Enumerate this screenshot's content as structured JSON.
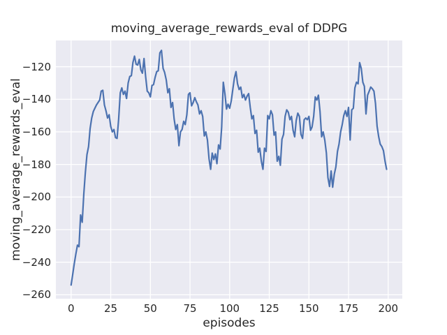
{
  "chart_data": {
    "type": "line",
    "title": "moving_average_rewards_eval of DDPG",
    "xlabel": "episodes",
    "ylabel": "moving_average_rewards_eval",
    "xlim": [
      -9.6,
      208.9
    ],
    "ylim": [
      -262.4,
      -103.9
    ],
    "grid": true,
    "legend": "none",
    "line_color": "#4c72b0",
    "axes_bg": "#eaeaf2",
    "grid_color": "#ffffff",
    "text_color": "#262626",
    "fig_bg": "#ffffff",
    "xticks": {
      "values": [
        0,
        25,
        50,
        75,
        100,
        125,
        150,
        175,
        200
      ],
      "labels": [
        "0",
        "25",
        "50",
        "75",
        "100",
        "125",
        "150",
        "175",
        "200"
      ]
    },
    "yticks": {
      "values": [
        -120,
        -140,
        -160,
        -180,
        -200,
        -220,
        -240,
        -260
      ],
      "labels": [
        "−120",
        "−140",
        "−160",
        "−180",
        "−200",
        "−220",
        "−240",
        "−260"
      ]
    },
    "series": [
      {
        "name": "moving_average_rewards_eval",
        "x_start": 0,
        "x_step": 1,
        "values": [
          -254,
          -247.5,
          -241,
          -235,
          -229.5,
          -230.5,
          -211,
          -215.5,
          -198,
          -185,
          -174,
          -169,
          -158,
          -151.5,
          -147.5,
          -145.5,
          -143.5,
          -142,
          -140.5,
          -135,
          -134.5,
          -143.5,
          -147,
          -151.5,
          -149.5,
          -156.5,
          -160,
          -158.5,
          -163.5,
          -164,
          -152,
          -136,
          -133,
          -137,
          -135,
          -139.5,
          -130,
          -126,
          -125.5,
          -117.5,
          -113.5,
          -118.5,
          -119,
          -115.5,
          -122,
          -124,
          -115,
          -126,
          -135,
          -136,
          -138.5,
          -131.5,
          -131,
          -126.5,
          -123,
          -122.5,
          -111.5,
          -110,
          -121,
          -123.5,
          -128,
          -136,
          -133.5,
          -145,
          -142,
          -152,
          -158.5,
          -155.5,
          -168.5,
          -160,
          -158.5,
          -153.5,
          -155.5,
          -149.5,
          -137,
          -136,
          -144,
          -142,
          -139,
          -141.5,
          -143.5,
          -149,
          -147,
          -150.5,
          -162.5,
          -160,
          -165,
          -176.5,
          -183,
          -173,
          -177,
          -173.5,
          -179.5,
          -168,
          -170.5,
          -157,
          -129.5,
          -136.5,
          -146,
          -143,
          -145.5,
          -141,
          -134,
          -127,
          -123,
          -130.5,
          -134,
          -132.5,
          -139,
          -137,
          -140.5,
          -138,
          -136.5,
          -145,
          -152,
          -150,
          -161,
          -159,
          -172.5,
          -170,
          -178,
          -183,
          -170,
          -172,
          -150,
          -152,
          -147,
          -149.5,
          -162,
          -160,
          -178,
          -175,
          -180.5,
          -164.5,
          -161.5,
          -150.5,
          -146.5,
          -148,
          -152.5,
          -150.5,
          -159,
          -163,
          -153,
          -148.5,
          -150.5,
          -161.5,
          -164,
          -152.5,
          -151.5,
          -152.5,
          -150.5,
          -159,
          -157,
          -150.5,
          -138.5,
          -140.5,
          -137.5,
          -147.5,
          -163,
          -160,
          -165,
          -173,
          -188,
          -193.5,
          -184,
          -194,
          -186,
          -181.5,
          -172,
          -167.5,
          -160,
          -155.5,
          -150,
          -147,
          -150.5,
          -145,
          -165,
          -146.5,
          -145.5,
          -133,
          -129.5,
          -130.5,
          -117.5,
          -121,
          -129.5,
          -132,
          -149,
          -137.5,
          -135,
          -132.5,
          -133.5,
          -135,
          -142.5,
          -156.5,
          -163,
          -167.5,
          -169,
          -171.5,
          -178,
          -183
        ]
      }
    ]
  }
}
